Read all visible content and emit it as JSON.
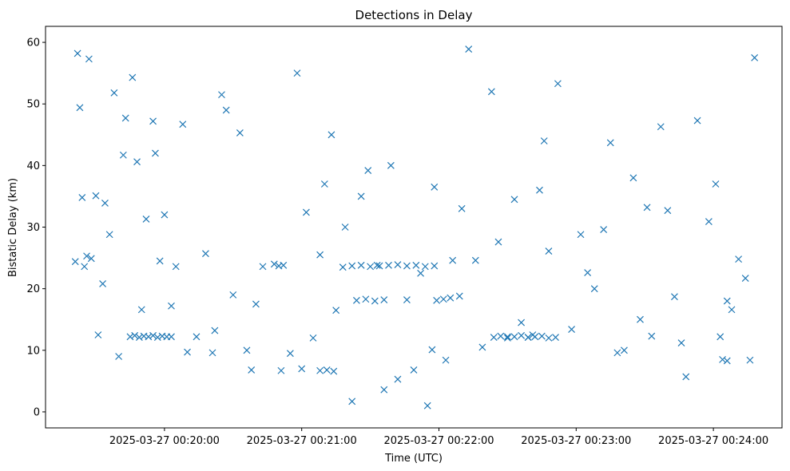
{
  "chart_data": {
    "type": "scatter",
    "title": "Detections in Delay",
    "xlabel": "Time (UTC)",
    "ylabel": "Bistatic Delay (km)",
    "marker": "x",
    "color": "#1f77b4",
    "grid": false,
    "legend": "none",
    "xlim": [
      "2025-03-27 00:19:08",
      "2025-03-27 00:24:30"
    ],
    "ylim": [
      -2.6,
      62.6
    ],
    "x_ticks": [
      "2025-03-27 00:20:00",
      "2025-03-27 00:21:00",
      "2025-03-27 00:22:00",
      "2025-03-27 00:23:00",
      "2025-03-27 00:24:00"
    ],
    "y_ticks": [
      0,
      10,
      20,
      30,
      40,
      50,
      60
    ],
    "points": {
      "x": [
        "2025-03-27 00:19:21",
        "2025-03-27 00:19:22",
        "2025-03-27 00:19:24",
        "2025-03-27 00:19:25",
        "2025-03-27 00:19:26",
        "2025-03-27 00:19:28",
        "2025-03-27 00:19:31",
        "2025-03-27 00:19:34",
        "2025-03-27 00:19:36",
        "2025-03-27 00:19:38",
        "2025-03-27 00:19:43",
        "2025-03-27 00:19:48",
        "2025-03-27 00:19:52",
        "2025-03-27 00:19:55",
        "2025-03-27 00:19:58",
        "2025-03-27 00:20:03",
        "2025-03-27 00:20:08",
        "2025-03-27 00:20:14",
        "2025-03-27 00:20:21",
        "2025-03-27 00:20:27",
        "2025-03-27 00:20:33",
        "2025-03-27 00:20:36",
        "2025-03-27 00:20:43",
        "2025-03-27 00:20:51",
        "2025-03-27 00:20:55",
        "2025-03-27 00:21:02",
        "2025-03-27 00:21:08",
        "2025-03-27 00:21:13",
        "2025-03-27 00:21:19",
        "2025-03-27 00:21:26",
        "2025-03-27 00:21:33",
        "2025-03-27 00:21:39",
        "2025-03-27 00:21:46",
        "2025-03-27 00:21:52",
        "2025-03-27 00:21:58",
        "2025-03-27 00:22:06",
        "2025-03-27 00:22:13",
        "2025-03-27 00:22:19",
        "2025-03-27 00:22:26",
        "2025-03-27 00:22:33",
        "2025-03-27 00:22:39",
        "2025-03-27 00:22:46",
        "2025-03-27 00:22:52",
        "2025-03-27 00:22:58",
        "2025-03-27 00:23:05",
        "2025-03-27 00:23:12",
        "2025-03-27 00:23:18",
        "2025-03-27 00:23:25",
        "2025-03-27 00:23:33",
        "2025-03-27 00:23:40",
        "2025-03-27 00:23:46",
        "2025-03-27 00:23:53",
        "2025-03-27 00:23:58",
        "2025-03-27 00:24:03",
        "2025-03-27 00:24:08",
        "2025-03-27 00:24:14",
        "2025-03-27 00:24:18",
        "2025-03-27 00:19:23",
        "2025-03-27 00:19:30",
        "2025-03-27 00:19:40",
        "2025-03-27 00:19:50",
        "2025-03-27 00:20:00",
        "2025-03-27 00:20:10",
        "2025-03-27 00:20:25",
        "2025-03-27 00:20:40",
        "2025-03-27 00:20:58",
        "2025-03-27 00:21:15",
        "2025-03-27 00:21:36",
        "2025-03-27 00:21:55",
        "2025-03-27 00:22:10",
        "2025-03-27 00:22:30",
        "2025-03-27 00:22:48",
        "2025-03-27 00:23:08",
        "2025-03-27 00:23:28",
        "2025-03-27 00:23:48",
        "2025-03-27 00:24:06",
        "2025-03-27 00:19:27",
        "2025-03-27 00:19:46",
        "2025-03-27 00:20:05",
        "2025-03-27 00:20:30",
        "2025-03-27 00:20:48",
        "2025-03-27 00:21:05",
        "2025-03-27 00:21:29",
        "2025-03-27 00:21:49",
        "2025-03-27 00:22:16",
        "2025-03-27 00:22:41",
        "2025-03-27 00:23:02",
        "2025-03-27 00:23:21",
        "2025-03-27 00:23:43",
        "2025-03-27 00:24:16",
        "2025-03-27 00:19:33",
        "2025-03-27 00:19:56",
        "2025-03-27 00:20:18",
        "2025-03-27 00:20:38",
        "2025-03-27 00:21:00",
        "2025-03-27 00:21:22",
        "2025-03-27 00:21:42",
        "2025-03-27 00:22:03",
        "2025-03-27 00:22:23",
        "2025-03-27 00:22:44",
        "2025-03-27 00:23:15",
        "2025-03-27 00:23:37",
        "2025-03-27 00:24:11",
        "2025-03-27 00:19:42",
        "2025-03-27 00:20:22",
        "2025-03-27 00:21:10",
        "2025-03-27 00:21:57",
        "2025-03-27 00:22:36",
        "2025-03-27 00:23:31",
        "2025-03-27 00:24:01",
        "2025-03-27 00:19:45",
        "2025-03-27 00:19:47",
        "2025-03-27 00:19:49",
        "2025-03-27 00:19:51",
        "2025-03-27 00:19:53",
        "2025-03-27 00:19:55",
        "2025-03-27 00:19:57",
        "2025-03-27 00:19:59",
        "2025-03-27 00:20:01",
        "2025-03-27 00:20:03",
        "2025-03-27 00:22:24",
        "2025-03-27 00:22:27",
        "2025-03-27 00:22:30",
        "2025-03-27 00:22:33",
        "2025-03-27 00:22:36",
        "2025-03-27 00:22:39",
        "2025-03-27 00:22:42",
        "2025-03-27 00:22:45",
        "2025-03-27 00:22:48",
        "2025-03-27 00:22:51",
        "2025-03-27 00:21:18",
        "2025-03-27 00:21:22",
        "2025-03-27 00:21:26",
        "2025-03-27 00:21:30",
        "2025-03-27 00:21:34",
        "2025-03-27 00:21:38",
        "2025-03-27 00:21:42",
        "2025-03-27 00:21:46",
        "2025-03-27 00:21:50",
        "2025-03-27 00:21:54",
        "2025-03-27 00:21:58",
        "2025-03-27 00:21:24",
        "2025-03-27 00:21:28",
        "2025-03-27 00:21:32",
        "2025-03-27 00:21:36",
        "2025-03-27 00:20:50",
        "2025-03-27 00:20:52",
        "2025-03-27 00:21:08",
        "2025-03-27 00:21:11",
        "2025-03-27 00:21:14",
        "2025-03-27 00:21:59",
        "2025-03-27 00:22:02",
        "2025-03-27 00:22:05",
        "2025-03-27 00:22:09",
        "2025-03-27 00:24:04",
        "2025-03-27 00:24:06"
      ],
      "y": [
        24.4,
        58.2,
        34.8,
        23.6,
        25.3,
        24.9,
        12.5,
        33.9,
        28.8,
        51.8,
        47.7,
        40.6,
        31.3,
        47.2,
        24.5,
        17.2,
        46.7,
        12.2,
        9.6,
        49.0,
        45.3,
        10.0,
        23.6,
        6.7,
        9.5,
        32.4,
        25.5,
        45.0,
        30.0,
        35.0,
        23.8,
        40.0,
        18.2,
        22.5,
        36.5,
        24.6,
        58.9,
        10.5,
        27.6,
        34.5,
        12.1,
        44.0,
        53.3,
        13.4,
        22.6,
        29.6,
        9.6,
        38.0,
        12.3,
        32.7,
        11.2,
        47.3,
        30.9,
        12.2,
        16.6,
        21.7,
        57.5,
        49.4,
        35.1,
        9.0,
        16.6,
        32.0,
        9.7,
        51.5,
        17.5,
        55.0,
        16.5,
        3.6,
        1.0,
        33.0,
        12.2,
        26.1,
        20.0,
        15.0,
        5.7,
        18.0,
        57.3,
        54.3,
        23.6,
        19.0,
        24.0,
        12.0,
        39.2,
        6.8,
        24.6,
        12.5,
        28.8,
        10.0,
        18.7,
        8.4,
        20.8,
        42.0,
        25.7,
        6.8,
        7.0,
        1.7,
        5.3,
        8.4,
        52.0,
        36.0,
        43.7,
        46.3,
        24.8,
        41.7,
        13.2,
        37.0,
        10.1,
        14.5,
        33.2,
        37.0,
        12.2,
        12.4,
        12.1,
        12.3,
        12.2,
        12.4,
        12.1,
        12.3,
        12.2,
        12.2,
        12.1,
        12.3,
        12.0,
        12.2,
        12.4,
        12.1,
        12.2,
        12.3,
        12.0,
        12.1,
        23.5,
        23.7,
        23.8,
        23.6,
        23.7,
        23.8,
        23.9,
        23.7,
        23.8,
        23.6,
        23.7,
        18.1,
        18.3,
        18.0,
        18.2,
        23.7,
        23.8,
        6.7,
        6.8,
        6.6,
        18.1,
        18.3,
        18.5,
        18.8,
        8.5,
        8.3
      ]
    }
  }
}
